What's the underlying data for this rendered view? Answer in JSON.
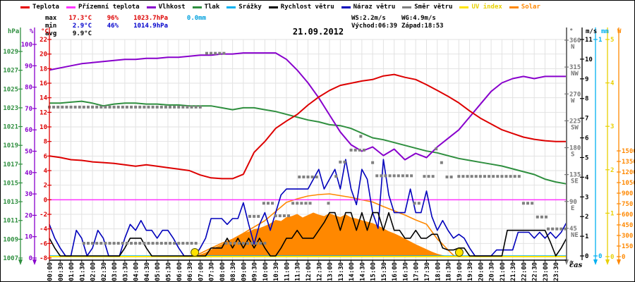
{
  "title": "21.09.2012",
  "legend": {
    "items": [
      {
        "label": "Teplota",
        "color": "#e60000",
        "text_color": "#000000"
      },
      {
        "label": "Přízemní teplota",
        "color": "#ff33ff",
        "text_color": "#000000"
      },
      {
        "label": "Vlhkost",
        "color": "#8800cc",
        "text_color": "#000000"
      },
      {
        "label": "Tlak",
        "color": "#2f8f3f",
        "text_color": "#000000"
      },
      {
        "label": "Srážky",
        "color": "#00b0f0",
        "text_color": "#000000"
      },
      {
        "label": "Rychlost větru",
        "color": "#000000",
        "text_color": "#000000"
      },
      {
        "label": "Náraz větru",
        "color": "#0000bb",
        "text_color": "#000000"
      },
      {
        "label": "Směr větru",
        "color": "#808080",
        "text_color": "#000000"
      },
      {
        "label": "UV index",
        "color": "#ffe400",
        "text_color": "#e8d000"
      },
      {
        "label": "Solar",
        "color": "#ff8800",
        "text_color": "#ff8800"
      }
    ]
  },
  "stats": {
    "max": {
      "label": "max",
      "temp": "17.3°C",
      "humidity": "96%",
      "pressure": "1023.7hPa",
      "rain": "0.0mm"
    },
    "min": {
      "label": "min",
      "temp": "2.9°C",
      "humidity": "46%",
      "pressure": "1014.9hPa"
    },
    "avg": {
      "label": "avg",
      "temp": "9.9°C"
    },
    "wind_speed": "WS:2.2m/s",
    "wind_gust": "WG:4.9m/s",
    "sunrise": "Východ:06:39",
    "sunset": "Západ:18:53"
  },
  "chart_data": {
    "type": "line",
    "title": "21.09.2012",
    "x_axis": {
      "label": "čas",
      "unit": "hours",
      "range": [
        0,
        24
      ],
      "tick_labels": [
        "00:00",
        "00:30",
        "01:00",
        "01:30",
        "02:00",
        "02:30",
        "03:00",
        "03:30",
        "04:00",
        "04:30",
        "05:00",
        "05:30",
        "06:00",
        "06:30",
        "07:00",
        "07:30",
        "08:00",
        "08:30",
        "09:00",
        "09:30",
        "10:00",
        "10:30",
        "11:00",
        "11:30",
        "12:00",
        "12:30",
        "13:00",
        "13:30",
        "14:00",
        "14:30",
        "15:00",
        "15:30",
        "16:00",
        "16:30",
        "17:00",
        "17:30",
        "18:00",
        "18:30",
        "19:00",
        "19:30",
        "20:00",
        "20:30",
        "21:00",
        "21:30",
        "22:00",
        "22:30",
        "23:00",
        "23:30"
      ]
    },
    "axes_titles": [
      {
        "text": "hPa",
        "color": "#2f8f3f"
      },
      {
        "text": "%",
        "color": "#8800cc"
      },
      {
        "text": "°C",
        "color": "#dd0000"
      },
      {
        "text": "°",
        "color": "#444444"
      },
      {
        "text": "m/s",
        "color": "#000000"
      },
      {
        "text": "mm",
        "color": "#00b0f0"
      },
      {
        "text": "W",
        "color": "#ff8800"
      }
    ],
    "axes": {
      "hPa": {
        "range": [
          1007,
          1029
        ],
        "ticks": [
          1007,
          1009,
          1011,
          1013,
          1015,
          1017,
          1019,
          1021,
          1023,
          1025,
          1027,
          1029
        ],
        "color": "#2f8f3f"
      },
      "percent": {
        "range": [
          0,
          100
        ],
        "ticks": [
          0,
          10,
          20,
          30,
          40,
          50,
          60,
          70,
          80,
          90,
          100
        ],
        "color": "#8800cc"
      },
      "celsius": {
        "range": [
          -8,
          22
        ],
        "ticks": [
          -8,
          -6,
          -4,
          -2,
          0,
          2,
          4,
          6,
          8,
          10,
          12,
          14,
          16,
          18,
          20,
          22
        ],
        "color": "#dd0000"
      },
      "direction": {
        "range": [
          0,
          360
        ],
        "ticks": [
          [
            45,
            "NE"
          ],
          [
            90,
            "E"
          ],
          [
            135,
            "SE"
          ],
          [
            180,
            "S"
          ],
          [
            225,
            "SW"
          ],
          [
            270,
            "W"
          ],
          [
            315,
            "NW"
          ],
          [
            360,
            "N"
          ]
        ],
        "color": "#777777"
      },
      "ms": {
        "range": [
          0,
          11
        ],
        "ticks": [
          0,
          1,
          2,
          3,
          4,
          5,
          6,
          7,
          8,
          9,
          10,
          11
        ],
        "color": "#000000"
      },
      "mm": {
        "range": [
          0,
          1
        ],
        "ticks": [
          0,
          1
        ],
        "color": "#00b0f0"
      },
      "uv": {
        "range": [
          0,
          5
        ],
        "ticks": [
          0,
          1,
          2,
          3,
          4,
          5
        ],
        "color": "#e8d000"
      },
      "watt": {
        "range": [
          0,
          1500
        ],
        "ticks": [
          0,
          150,
          300,
          450,
          600,
          750,
          900,
          1050,
          1200,
          1350,
          1500
        ],
        "color": "#ff8800"
      }
    },
    "series": {
      "temperature": {
        "name": "Teplota",
        "unit": "°C",
        "color": "#dd0000",
        "interval_h": 0.5,
        "values": [
          6.0,
          5.8,
          5.5,
          5.4,
          5.2,
          5.1,
          5.0,
          4.8,
          4.6,
          4.8,
          4.6,
          4.4,
          4.2,
          4.0,
          3.4,
          3.0,
          2.9,
          2.9,
          3.5,
          6.5,
          8.0,
          9.8,
          10.8,
          11.7,
          13.0,
          14.1,
          15.0,
          15.7,
          16.0,
          16.3,
          16.5,
          17.0,
          17.2,
          16.8,
          16.5,
          15.8,
          15.0,
          14.2,
          13.3,
          12.2,
          11.2,
          10.4,
          9.6,
          9.1,
          8.6,
          8.3,
          8.1,
          8.0,
          8.0
        ]
      },
      "ground_temperature": {
        "name": "Přízemní teplota",
        "unit": "°C",
        "color": "#ff33ff",
        "flat_value": 0.0
      },
      "humidity": {
        "name": "Vlhkost",
        "unit": "%",
        "color": "#8800cc",
        "interval_h": 0.5,
        "values": [
          88,
          89,
          90,
          91,
          91.5,
          92,
          92.5,
          93,
          93,
          93.5,
          93.5,
          94,
          94,
          94.5,
          95,
          95,
          95.5,
          95.5,
          96,
          96,
          96,
          96,
          93,
          88,
          82,
          75,
          67,
          59,
          53,
          50,
          52,
          48,
          51,
          46,
          49,
          47,
          52,
          56,
          60,
          66,
          72,
          78,
          82,
          84,
          85,
          84,
          85,
          85,
          85
        ]
      },
      "pressure": {
        "name": "Tlak",
        "unit": "hPa",
        "color": "#2f8f3f",
        "interval_h": 0.5,
        "values": [
          1023.5,
          1023.5,
          1023.6,
          1023.7,
          1023.5,
          1023.2,
          1023.4,
          1023.5,
          1023.5,
          1023.4,
          1023.4,
          1023.3,
          1023.3,
          1023.2,
          1023.2,
          1023.2,
          1023.0,
          1022.8,
          1023.0,
          1023.0,
          1022.8,
          1022.6,
          1022.3,
          1022.0,
          1021.7,
          1021.5,
          1021.2,
          1021.1,
          1020.8,
          1020.3,
          1019.8,
          1019.6,
          1019.3,
          1019.0,
          1018.7,
          1018.4,
          1018.2,
          1017.9,
          1017.6,
          1017.4,
          1017.2,
          1017.0,
          1016.8,
          1016.5,
          1016.2,
          1015.9,
          1015.4,
          1015.1,
          1014.9
        ]
      },
      "precipitation": {
        "name": "Srážky",
        "unit": "mm",
        "color": "#00b0f0",
        "flat_value": 0.0,
        "total_mm": 0.0
      },
      "wind_gust": {
        "name": "Náraz větru",
        "unit": "m/s",
        "color": "#0000bb",
        "interval_h": 0.25,
        "values": [
          1.6,
          0.9,
          0.4,
          0.0,
          0.0,
          1.3,
          0.9,
          0.0,
          0.4,
          1.3,
          0.9,
          0.0,
          0.0,
          0.0,
          0.9,
          1.6,
          1.3,
          1.8,
          1.3,
          1.3,
          0.9,
          1.3,
          1.3,
          0.9,
          0.4,
          0.0,
          0.0,
          0.0,
          0.4,
          0.9,
          1.9,
          1.9,
          1.9,
          1.6,
          1.9,
          1.9,
          2.7,
          1.6,
          0.6,
          1.6,
          2.2,
          1.3,
          2.2,
          3.1,
          3.4,
          3.4,
          3.4,
          3.4,
          3.4,
          3.9,
          4.4,
          3.4,
          3.9,
          4.4,
          3.4,
          4.9,
          3.4,
          2.6,
          4.4,
          3.9,
          2.2,
          1.4,
          4.9,
          3.1,
          2.2,
          2.2,
          2.2,
          3.4,
          2.2,
          2.2,
          3.3,
          2.0,
          1.3,
          1.8,
          1.3,
          0.9,
          1.1,
          0.9,
          0.4,
          0.0,
          0.0,
          0.0,
          0.0,
          0.3,
          0.3,
          0.3,
          0.3,
          1.2,
          1.2,
          1.2,
          0.9,
          1.2,
          0.9,
          1.2,
          0.9,
          1.2,
          1.7
        ]
      },
      "wind_speed": {
        "name": "Rychlost větru",
        "unit": "m/s",
        "color": "#000000",
        "interval_h": 0.25,
        "values": [
          0.9,
          0.4,
          0.0,
          0.0,
          0.0,
          0.0,
          0.0,
          0.0,
          0.0,
          0.0,
          0.0,
          0.0,
          0.0,
          0.0,
          0.4,
          0.9,
          0.9,
          0.9,
          0.4,
          0.0,
          0.0,
          0.0,
          0.0,
          0.0,
          0.0,
          0.0,
          0.0,
          0.0,
          0.0,
          0.0,
          0.4,
          0.4,
          0.4,
          0.9,
          0.4,
          0.9,
          0.4,
          0.9,
          0.4,
          0.9,
          0.4,
          0.0,
          0.0,
          0.4,
          0.9,
          0.9,
          1.3,
          0.9,
          0.9,
          0.9,
          1.3,
          1.7,
          2.2,
          2.2,
          1.3,
          2.2,
          2.2,
          1.3,
          2.2,
          1.3,
          2.2,
          2.2,
          1.3,
          2.2,
          1.3,
          1.3,
          0.9,
          0.9,
          1.3,
          0.9,
          0.9,
          1.1,
          1.1,
          0.4,
          0.3,
          0.3,
          0.4,
          0.4,
          0.0,
          0.0,
          0.0,
          0.0,
          0.0,
          0.0,
          0.0,
          1.3,
          1.3,
          1.3,
          1.3,
          1.3,
          1.3,
          1.3,
          1.3,
          0.7,
          0.0,
          0.4,
          0.9
        ]
      },
      "wind_direction": {
        "name": "Směr větru",
        "unit": "°",
        "color": "#808080",
        "runs": [
          [
            0.0,
            7.05,
            248
          ],
          [
            1.6,
            6.9,
            20
          ],
          [
            7.3,
            8.1,
            338
          ],
          [
            8.2,
            10.05,
            20
          ],
          [
            9.3,
            9.7,
            65
          ],
          [
            9.95,
            10.35,
            87
          ],
          [
            10.5,
            11.2,
            66
          ],
          [
            11.3,
            12.1,
            87
          ],
          [
            11.6,
            12.45,
            131
          ],
          [
            12.95,
            13.1,
            87
          ],
          [
            13.3,
            13.4,
            132
          ],
          [
            13.5,
            13.8,
            156
          ],
          [
            14.0,
            14.7,
            176
          ],
          [
            14.45,
            14.55,
            199
          ],
          [
            15.0,
            15.15,
            155
          ],
          [
            15.2,
            16.8,
            133
          ],
          [
            16.95,
            17.3,
            87
          ],
          [
            17.4,
            17.85,
            132
          ],
          [
            17.95,
            18.05,
            178
          ],
          [
            18.2,
            18.3,
            155
          ],
          [
            18.45,
            18.8,
            131
          ],
          [
            19.0,
            21.95,
            132
          ],
          [
            22.0,
            22.5,
            87
          ],
          [
            22.65,
            23.1,
            64
          ],
          [
            23.15,
            24.0,
            44
          ]
        ]
      },
      "uv_index": {
        "name": "UV index",
        "unit": "",
        "color": "#ffe400",
        "flat_value": 0,
        "sun_marker_hours": [
          6.75,
          19.02
        ]
      },
      "solar": {
        "name": "Solar",
        "unit": "W",
        "color": "#ff8800",
        "points": [
          [
            6.5,
            0
          ],
          [
            6.75,
            5
          ],
          [
            7,
            30
          ],
          [
            7.25,
            60
          ],
          [
            7.5,
            100
          ],
          [
            7.75,
            140
          ],
          [
            8,
            175
          ],
          [
            8.25,
            215
          ],
          [
            8.5,
            255
          ],
          [
            8.75,
            295
          ],
          [
            9,
            330
          ],
          [
            9.25,
            355
          ],
          [
            9.5,
            390
          ],
          [
            9.75,
            405
          ],
          [
            10,
            435
          ],
          [
            10.25,
            470
          ],
          [
            10.5,
            520
          ],
          [
            10.75,
            505
          ],
          [
            11,
            560
          ],
          [
            11.25,
            575
          ],
          [
            11.5,
            605
          ],
          [
            11.75,
            555
          ],
          [
            12,
            590
          ],
          [
            12.25,
            625
          ],
          [
            12.5,
            595
          ],
          [
            12.75,
            575
          ],
          [
            13,
            615
          ],
          [
            13.25,
            585
          ],
          [
            13.5,
            560
          ],
          [
            13.75,
            600
          ],
          [
            14,
            555
          ],
          [
            14.25,
            540
          ],
          [
            14.5,
            515
          ],
          [
            14.75,
            495
          ],
          [
            15,
            475
          ],
          [
            15.25,
            440
          ],
          [
            15.5,
            400
          ],
          [
            15.75,
            360
          ],
          [
            16,
            330
          ],
          [
            16.25,
            295
          ],
          [
            16.5,
            255
          ],
          [
            16.75,
            215
          ],
          [
            17,
            175
          ],
          [
            17.25,
            140
          ],
          [
            17.5,
            105
          ],
          [
            17.75,
            70
          ],
          [
            18,
            40
          ],
          [
            18.25,
            20
          ],
          [
            18.5,
            8
          ],
          [
            18.75,
            2
          ],
          [
            19,
            0
          ]
        ],
        "clear_sky_points": [
          [
            6.65,
            0
          ],
          [
            7,
            45
          ],
          [
            7.5,
            120
          ],
          [
            8,
            190
          ],
          [
            8.5,
            245
          ],
          [
            9,
            330
          ],
          [
            9.5,
            420
          ],
          [
            10,
            510
          ],
          [
            10.5,
            640
          ],
          [
            11,
            770
          ],
          [
            11.5,
            820
          ],
          [
            12,
            860
          ],
          [
            12.5,
            880
          ],
          [
            13,
            890
          ],
          [
            13.5,
            865
          ],
          [
            14,
            840
          ],
          [
            14.5,
            805
          ],
          [
            15,
            775
          ],
          [
            15.5,
            710
          ],
          [
            16,
            650
          ],
          [
            16.5,
            590
          ],
          [
            17,
            520
          ],
          [
            17.5,
            460
          ],
          [
            18,
            250
          ],
          [
            18.25,
            175
          ],
          [
            18.5,
            95
          ],
          [
            18.75,
            20
          ],
          [
            18.88,
            0
          ]
        ]
      }
    }
  }
}
